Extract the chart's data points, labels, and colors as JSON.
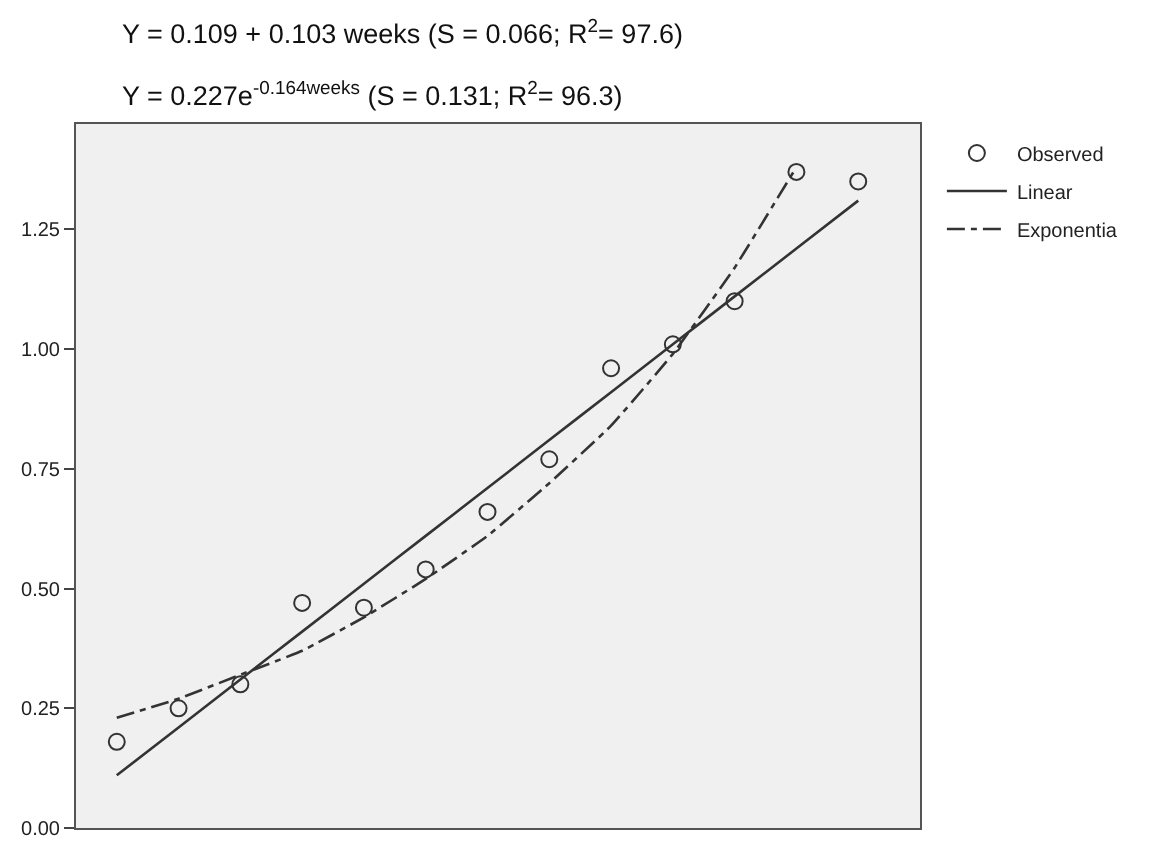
{
  "chart_data": {
    "type": "scatter",
    "annotations": [
      "Y = 0.109 + 0.103 weeks (S = 0.066; R$^{2}$= 97.6)",
      "Y = 0.227e$^{-0.164weeks}$ (S = 0.131; R$^{2}$= 96.3)"
    ],
    "categories": [
      null,
      null,
      null,
      null,
      null,
      null,
      null,
      null,
      null,
      null,
      null,
      null,
      null
    ],
    "series": [
      {
        "name": "Observed",
        "marker": "circle",
        "color": "#333333",
        "values": [
          0.18,
          0.25,
          0.3,
          0.47,
          0.46,
          0.54,
          0.66,
          0.77,
          0.96,
          1.01,
          1.1,
          1.37,
          1.35
        ]
      },
      {
        "name": "Linear",
        "type": "line",
        "line_style": "solid",
        "marker": "none",
        "color": "#333333",
        "values": [
          0.11,
          0.21,
          0.31,
          0.41,
          0.51,
          0.61,
          0.71,
          0.81,
          0.91,
          1.01,
          1.11,
          1.21,
          1.31
        ]
      },
      {
        "name": "Exponentia",
        "type": "line",
        "line_style": "dashed",
        "marker": "none",
        "color": "#333333",
        "values": [
          0.23,
          0.27,
          0.32,
          0.37,
          0.44,
          0.52,
          0.61,
          0.72,
          0.84,
          0.99,
          1.17,
          1.38,
          null
        ]
      }
    ],
    "ylim": [
      0,
      1.47
    ],
    "yticks": [
      {
        "value": 0,
        "label": "0.00"
      },
      {
        "value": 0.25,
        "label": "0.25"
      },
      {
        "value": 0.5,
        "label": "0.50"
      },
      {
        "value": 0.75,
        "label": "0.75"
      },
      {
        "value": 1,
        "label": "1.00"
      },
      {
        "value": 1.25,
        "label": "1.25"
      }
    ],
    "tick_labels": "y",
    "grid": false,
    "legend": "top right"
  }
}
